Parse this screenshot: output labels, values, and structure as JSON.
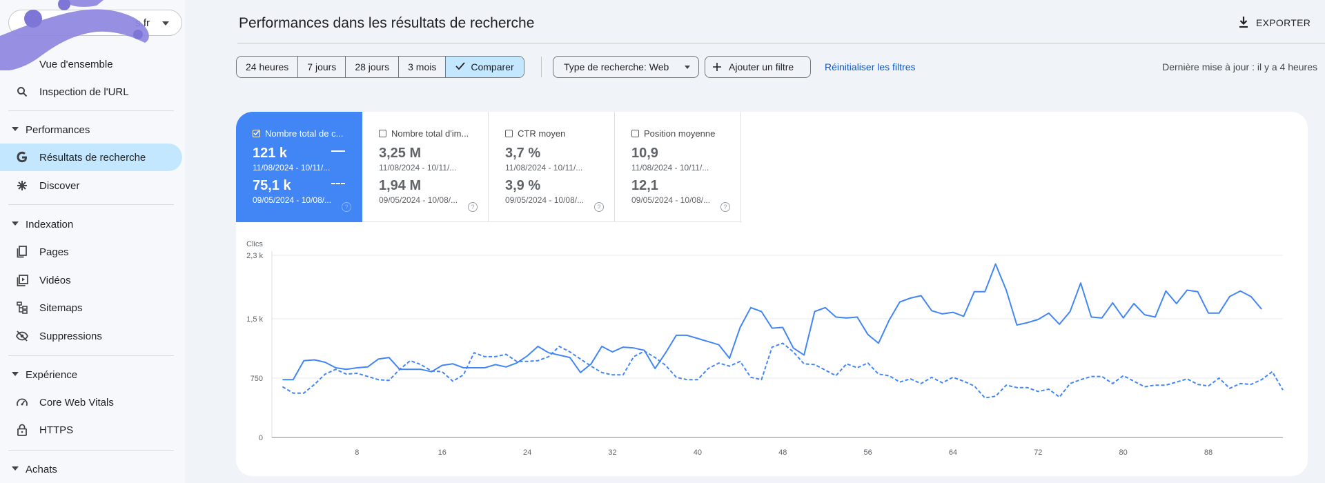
{
  "sidebar": {
    "property": "s.fr",
    "top_items": [
      {
        "label": "Vue d'ensemble",
        "icon": "home-icon"
      },
      {
        "label": "Inspection de l'URL",
        "icon": "search-icon"
      }
    ],
    "sections": [
      {
        "label": "Performances",
        "items": [
          {
            "label": "Résultats de recherche",
            "icon": "google-g-icon",
            "active": true
          },
          {
            "label": "Discover",
            "icon": "asterisk-icon"
          }
        ]
      },
      {
        "label": "Indexation",
        "items": [
          {
            "label": "Pages",
            "icon": "pages-icon"
          },
          {
            "label": "Vidéos",
            "icon": "video-icon"
          },
          {
            "label": "Sitemaps",
            "icon": "sitemap-icon"
          },
          {
            "label": "Suppressions",
            "icon": "eye-off-icon"
          }
        ]
      },
      {
        "label": "Expérience",
        "items": [
          {
            "label": "Core Web Vitals",
            "icon": "gauge-icon"
          },
          {
            "label": "HTTPS",
            "icon": "lock-icon"
          }
        ]
      },
      {
        "label": "Achats",
        "items": []
      }
    ]
  },
  "header": {
    "title": "Performances dans les résultats de recherche",
    "export_label": "EXPORTER"
  },
  "filters": {
    "ranges": [
      "24 heures",
      "7 jours",
      "28 jours",
      "3 mois"
    ],
    "compare_label": "Comparer",
    "search_type": "Type de recherche: Web",
    "add_filter": "Ajouter un filtre",
    "reset": "Réinitialiser les filtres",
    "updated": "Dernière mise à jour : il y a 4 heures"
  },
  "metrics": [
    {
      "label": "Nombre total de c...",
      "v1": "121 k",
      "d1": "11/08/2024 - 10/11/...",
      "v2": "75,1 k",
      "d2": "09/05/2024 - 10/08/...",
      "checked": true
    },
    {
      "label": "Nombre total d'im...",
      "v1": "3,25 M",
      "d1": "11/08/2024 - 10/11/...",
      "v2": "1,94 M",
      "d2": "09/05/2024 - 10/08/...",
      "checked": false
    },
    {
      "label": "CTR moyen",
      "v1": "3,7 %",
      "d1": "11/08/2024 - 10/11/...",
      "v2": "3,9 %",
      "d2": "09/05/2024 - 10/08/...",
      "checked": false
    },
    {
      "label": "Position moyenne",
      "v1": "10,9",
      "d1": "11/08/2024 - 10/11/...",
      "v2": "12,1",
      "d2": "09/05/2024 - 10/08/...",
      "checked": false
    }
  ],
  "colors": {
    "accent": "#4285f4",
    "active_nav": "#c2e7ff",
    "link": "#0b57d0"
  },
  "chart_data": {
    "type": "line",
    "ylabel": "Clics",
    "y_ticks": [
      0,
      750,
      1500,
      2300
    ],
    "y_tick_labels": [
      "0",
      "750",
      "1,5 k",
      "2,3 k"
    ],
    "ylim": [
      0,
      2300
    ],
    "x_ticks": [
      8,
      16,
      24,
      32,
      40,
      48,
      56,
      64,
      72,
      80,
      88
    ],
    "x_range": [
      0,
      95
    ],
    "series": [
      {
        "style": "solid",
        "x_start": 1,
        "values": [
          730,
          730,
          970,
          980,
          950,
          880,
          860,
          880,
          890,
          990,
          1010,
          860,
          860,
          860,
          830,
          910,
          930,
          880,
          880,
          880,
          920,
          890,
          940,
          1030,
          1150,
          1070,
          1040,
          1010,
          820,
          930,
          1150,
          1080,
          1140,
          1130,
          1100,
          870,
          1070,
          1290,
          1290,
          1250,
          1210,
          1170,
          1000,
          1390,
          1640,
          1590,
          1380,
          1390,
          1130,
          1040,
          1590,
          1640,
          1520,
          1510,
          1520,
          1300,
          1190,
          1480,
          1710,
          1760,
          1790,
          1600,
          1560,
          1580,
          1530,
          1840,
          1840,
          2190,
          1860,
          1420,
          1450,
          1490,
          1570,
          1430,
          1590,
          1950,
          1520,
          1510,
          1700,
          1510,
          1690,
          1550,
          1520,
          1850,
          1690,
          1860,
          1840,
          1570,
          1570,
          1780,
          1850,
          1780,
          1620
        ]
      },
      {
        "style": "dashed",
        "x_start": 1,
        "values": [
          640,
          560,
          560,
          670,
          800,
          860,
          800,
          810,
          770,
          730,
          720,
          860,
          970,
          920,
          840,
          830,
          710,
          790,
          1070,
          1020,
          1020,
          1050,
          960,
          960,
          970,
          1020,
          1150,
          1080,
          990,
          900,
          820,
          790,
          790,
          1020,
          1090,
          1010,
          910,
          760,
          730,
          730,
          870,
          940,
          900,
          960,
          760,
          730,
          1140,
          1190,
          1080,
          930,
          920,
          850,
          780,
          930,
          880,
          940,
          800,
          780,
          700,
          740,
          680,
          760,
          690,
          760,
          710,
          650,
          500,
          520,
          660,
          630,
          630,
          580,
          610,
          510,
          680,
          730,
          770,
          770,
          680,
          780,
          710,
          640,
          660,
          660,
          700,
          740,
          670,
          650,
          750,
          620,
          680,
          670,
          730,
          830,
          600
        ]
      }
    ]
  }
}
